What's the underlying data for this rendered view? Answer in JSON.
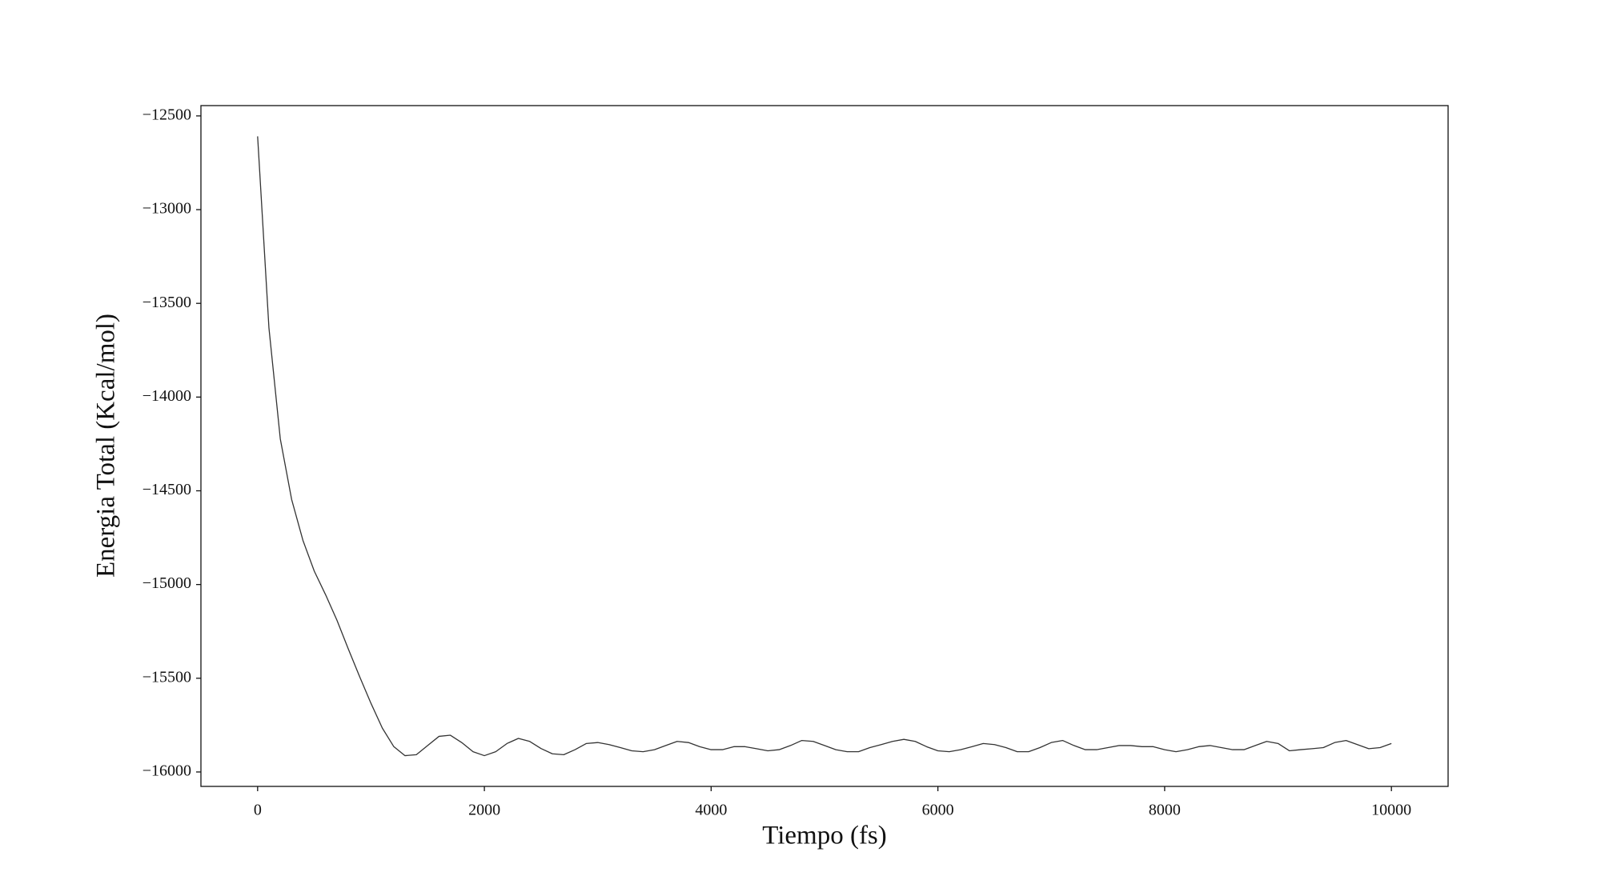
{
  "chart_data": {
    "type": "line",
    "xlabel": "Tiempo (fs)",
    "ylabel": "Energia Total (Kcal/mol)",
    "grid": false,
    "x": [
      0,
      100,
      200,
      300,
      400,
      500,
      600,
      700,
      800,
      900,
      1000,
      1100,
      1200,
      1300,
      1400,
      1500,
      1600,
      1700,
      1800,
      1900,
      2000,
      2100,
      2200,
      2300,
      2400,
      2500,
      2600,
      2700,
      2800,
      2900,
      3000,
      3100,
      3200,
      3300,
      3400,
      3500,
      3600,
      3700,
      3800,
      3900,
      4000,
      4100,
      4200,
      4300,
      4400,
      4500,
      4600,
      4700,
      4800,
      4900,
      5000,
      5100,
      5200,
      5300,
      5400,
      5500,
      5600,
      5700,
      5800,
      5900,
      6000,
      6100,
      6200,
      6300,
      6400,
      6500,
      6600,
      6700,
      6800,
      6900,
      7000,
      7100,
      7200,
      7300,
      7400,
      7500,
      7600,
      7700,
      7800,
      7900,
      8000,
      8100,
      8200,
      8300,
      8400,
      8500,
      8600,
      8700,
      8800,
      8900,
      9000,
      9100,
      9200,
      9300,
      9400,
      9500,
      9600,
      9700,
      9800,
      9900,
      10000
    ],
    "series": [
      {
        "name": "Energia Total",
        "color": "#333333",
        "values": [
          -12609,
          -13632,
          -14223,
          -14546,
          -14765,
          -14929,
          -15055,
          -15191,
          -15344,
          -15492,
          -15634,
          -15766,
          -15864,
          -15913,
          -15908,
          -15859,
          -15810,
          -15804,
          -15843,
          -15892,
          -15913,
          -15892,
          -15848,
          -15821,
          -15837,
          -15875,
          -15903,
          -15908,
          -15881,
          -15848,
          -15843,
          -15854,
          -15870,
          -15887,
          -15892,
          -15881,
          -15859,
          -15837,
          -15843,
          -15865,
          -15881,
          -15881,
          -15865,
          -15865,
          -15876,
          -15887,
          -15881,
          -15859,
          -15832,
          -15837,
          -15859,
          -15881,
          -15892,
          -15892,
          -15870,
          -15854,
          -15837,
          -15826,
          -15837,
          -15865,
          -15887,
          -15892,
          -15881,
          -15865,
          -15848,
          -15854,
          -15870,
          -15892,
          -15892,
          -15870,
          -15843,
          -15832,
          -15859,
          -15881,
          -15881,
          -15870,
          -15859,
          -15859,
          -15865,
          -15865,
          -15881,
          -15892,
          -15881,
          -15865,
          -15859,
          -15870,
          -15881,
          -15881,
          -15859,
          -15837,
          -15848,
          -15887,
          -15881,
          -15876,
          -15870,
          -15843,
          -15832,
          -15854,
          -15876,
          -15870,
          -15848
        ]
      }
    ],
    "xlim": [
      -500,
      10500
    ],
    "ylim": [
      -16077,
      -12445
    ],
    "xticks": [
      0,
      2000,
      4000,
      6000,
      8000,
      10000
    ],
    "yticks": [
      {
        "value": -16000,
        "label": "−16000"
      },
      {
        "value": -15500,
        "label": "−15500"
      },
      {
        "value": -15000,
        "label": "−15000"
      },
      {
        "value": -14500,
        "label": "−14500"
      },
      {
        "value": -14000,
        "label": "−14000"
      },
      {
        "value": -13500,
        "label": "−13500"
      },
      {
        "value": -13000,
        "label": "−13000"
      },
      {
        "value": -12500,
        "label": "−12500"
      }
    ]
  }
}
